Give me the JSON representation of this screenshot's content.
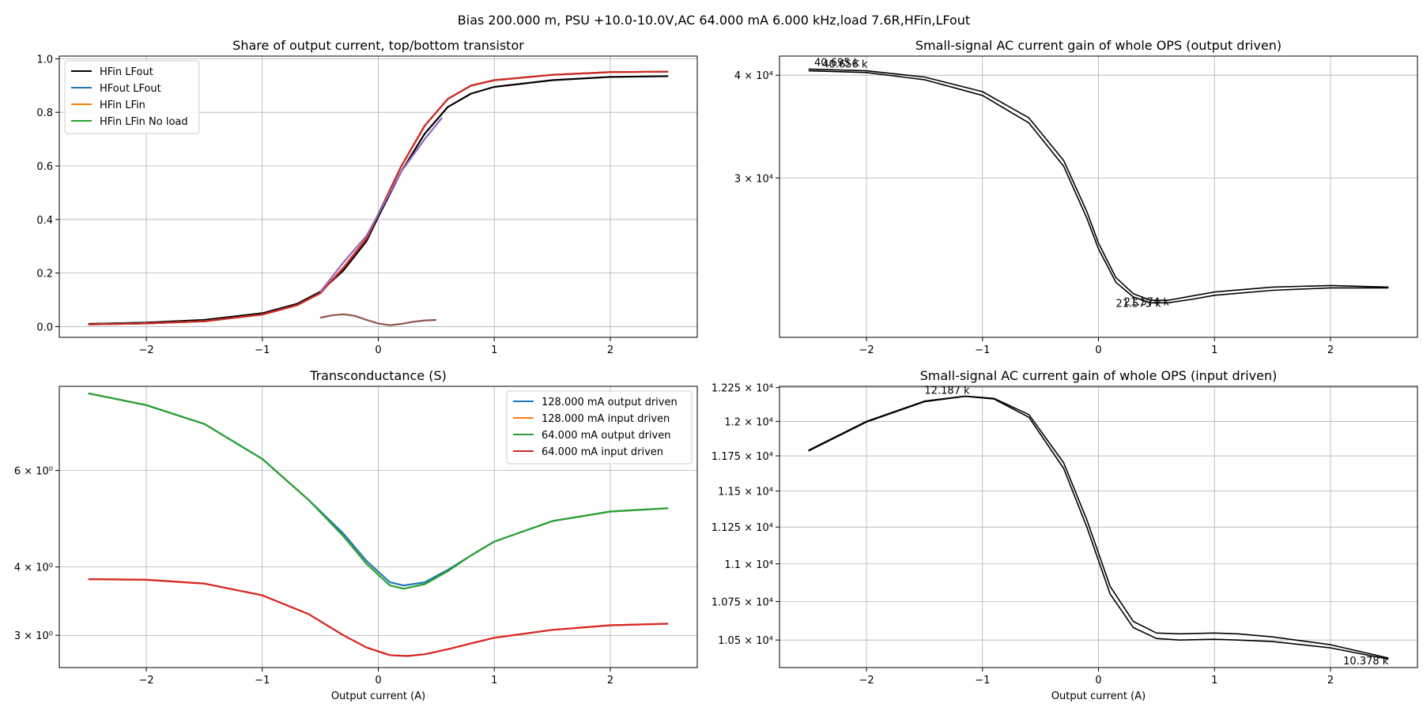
{
  "figure": {
    "suptitle": "Bias 200.000 m, PSU +10.0-10.0V,AC 64.000 mA 6.000 kHz,load 7.6R,HFin,LFout"
  },
  "chart_data": [
    {
      "id": "share",
      "type": "line",
      "title": "Share of output current, top/bottom transistor",
      "xlabel": "",
      "ylabel": "",
      "xlim": [
        -2.75,
        2.75
      ],
      "ylim": [
        -0.04,
        1.01
      ],
      "xticks": [
        -2,
        -1,
        0,
        1,
        2
      ],
      "xtick_labels": [
        "−2",
        "−1",
        "0",
        "1",
        "2"
      ],
      "yticks": [
        0.0,
        0.2,
        0.4,
        0.6,
        0.8,
        1.0
      ],
      "ytick_labels": [
        "0.0",
        "0.2",
        "0.4",
        "0.6",
        "0.8",
        "1.0"
      ],
      "grid": true,
      "legend_position": "top-left",
      "series": [
        {
          "name": "HFin LFout",
          "color": "#000000",
          "x": [
            -2.5,
            -2.0,
            -1.5,
            -1.0,
            -0.7,
            -0.5,
            -0.3,
            -0.1,
            0.0,
            0.2,
            0.4,
            0.6,
            0.8,
            1.0,
            1.5,
            2.0,
            2.5
          ],
          "y": [
            0.01,
            0.015,
            0.025,
            0.05,
            0.085,
            0.13,
            0.21,
            0.32,
            0.41,
            0.58,
            0.72,
            0.82,
            0.87,
            0.895,
            0.92,
            0.932,
            0.935
          ]
        },
        {
          "name": "HFout LFout",
          "color": "#1f77b4",
          "x": [
            -2.5,
            -2.0,
            -1.5,
            -1.0,
            -0.7,
            -0.5,
            -0.3,
            -0.1,
            0.0,
            0.2,
            0.4,
            0.6,
            0.8,
            1.0,
            1.5,
            2.0,
            2.5
          ],
          "y": [
            0.008,
            0.012,
            0.02,
            0.045,
            0.08,
            0.125,
            0.22,
            0.33,
            0.42,
            0.6,
            0.75,
            0.85,
            0.9,
            0.92,
            0.94,
            0.95,
            0.952
          ]
        },
        {
          "name": "HFin LFin",
          "color": "#ff7f0e",
          "x": [
            -2.5,
            -2.0,
            -1.5,
            -1.0,
            -0.7,
            -0.5,
            -0.3,
            -0.1,
            0.0,
            0.2,
            0.4,
            0.6,
            0.8,
            1.0,
            1.5,
            2.0,
            2.5
          ],
          "y": [
            0.008,
            0.012,
            0.02,
            0.045,
            0.08,
            0.125,
            0.22,
            0.33,
            0.42,
            0.6,
            0.75,
            0.85,
            0.9,
            0.92,
            0.94,
            0.95,
            0.952
          ]
        },
        {
          "name": "HFin LFin No load",
          "color": "#2ca02c",
          "x": [
            -2.5,
            -2.0,
            -1.5,
            -1.0,
            -0.7,
            -0.5,
            -0.3,
            -0.1,
            0.0,
            0.2,
            0.4,
            0.6,
            0.8,
            1.0,
            1.5,
            2.0,
            2.5
          ],
          "y": [
            0.008,
            0.012,
            0.02,
            0.045,
            0.08,
            0.125,
            0.22,
            0.33,
            0.42,
            0.6,
            0.75,
            0.85,
            0.9,
            0.92,
            0.94,
            0.95,
            0.952
          ]
        },
        {
          "name": "",
          "color": "#d62728",
          "x": [
            -2.5,
            -2.0,
            -1.5,
            -1.0,
            -0.7,
            -0.5,
            -0.3,
            -0.1,
            0.0,
            0.2,
            0.4,
            0.6,
            0.8,
            1.0,
            1.5,
            2.0,
            2.5
          ],
          "y": [
            0.008,
            0.012,
            0.02,
            0.045,
            0.08,
            0.125,
            0.22,
            0.33,
            0.42,
            0.6,
            0.75,
            0.85,
            0.9,
            0.92,
            0.94,
            0.95,
            0.952
          ]
        },
        {
          "name": "",
          "color": "#9467bd",
          "x": [
            -0.5,
            -0.3,
            -0.1,
            0.0,
            0.2,
            0.4,
            0.55
          ],
          "y": [
            0.13,
            0.24,
            0.34,
            0.42,
            0.58,
            0.7,
            0.78
          ]
        },
        {
          "name": "",
          "color": "#8c564b",
          "x": [
            -0.5,
            -0.4,
            -0.3,
            -0.2,
            -0.1,
            0.0,
            0.1,
            0.2,
            0.3,
            0.4,
            0.5
          ],
          "y": [
            0.033,
            0.042,
            0.046,
            0.04,
            0.025,
            0.012,
            0.005,
            0.01,
            0.018,
            0.023,
            0.025
          ]
        }
      ]
    },
    {
      "id": "gain_out",
      "type": "line",
      "title": "Small-signal AC current gain of whole OPS (output driven)",
      "xlabel": "",
      "ylabel": "",
      "xlim": [
        -2.75,
        2.75
      ],
      "ylim": [
        19200,
        42200
      ],
      "yscale": "log",
      "xticks": [
        -2,
        -1,
        0,
        1,
        2
      ],
      "xtick_labels": [
        "−2",
        "−1",
        "0",
        "1",
        "2"
      ],
      "yticks": [
        30000,
        40000
      ],
      "ytick_labels": [
        "3 × 10⁴",
        "4 × 10⁴"
      ],
      "grid": true,
      "series": [
        {
          "name": "",
          "color": "#000000",
          "x": [
            -2.5,
            -2.0,
            -1.5,
            -1.0,
            -0.6,
            -0.3,
            -0.1,
            0.0,
            0.15,
            0.3,
            0.45,
            0.6,
            0.8,
            1.0,
            1.5,
            2.0,
            2.5
          ],
          "y": [
            40695,
            40500,
            39800,
            38200,
            35500,
            31500,
            27300,
            25000,
            22700,
            21700,
            21300,
            21300,
            21550,
            21800,
            22100,
            22200,
            22100
          ]
        },
        {
          "name": "",
          "color": "#000000",
          "x": [
            -2.5,
            -2.0,
            -1.5,
            -1.0,
            -0.6,
            -0.3,
            -0.1,
            0.0,
            0.15,
            0.3,
            0.45,
            0.6,
            0.8,
            1.0,
            1.5,
            2.0,
            2.5
          ],
          "y": [
            40500,
            40300,
            39500,
            37800,
            35000,
            31000,
            26800,
            24600,
            22400,
            21500,
            21150,
            21150,
            21350,
            21600,
            21900,
            22050,
            22050
          ]
        }
      ],
      "annotations": [
        "40.695 k",
        "40.656 k",
        "21.574 k",
        "21.573 k"
      ]
    },
    {
      "id": "transconductance",
      "type": "line",
      "title": "Transconductance (S)",
      "xlabel": "Output current (A)",
      "ylabel": "",
      "xlim": [
        -2.75,
        2.75
      ],
      "ylim": [
        2.62,
        8.55
      ],
      "yscale": "log",
      "xticks": [
        -2,
        -1,
        0,
        1,
        2
      ],
      "xtick_labels": [
        "−2",
        "−1",
        "0",
        "1",
        "2"
      ],
      "yticks": [
        3,
        4,
        6
      ],
      "ytick_labels": [
        "3 × 10⁰",
        "4 × 10⁰",
        "6 × 10⁰"
      ],
      "grid": true,
      "legend_position": "top-right",
      "series": [
        {
          "name": "128.000 mA output driven",
          "color": "#1f77b4",
          "x": [
            -2.5,
            -2.0,
            -1.5,
            -1.0,
            -0.6,
            -0.3,
            -0.1,
            0.1,
            0.22,
            0.4,
            0.6,
            0.8,
            1.0,
            1.5,
            2.0,
            2.5
          ],
          "y": [
            8.3,
            7.9,
            7.3,
            6.3,
            5.3,
            4.6,
            4.1,
            3.75,
            3.7,
            3.75,
            3.95,
            4.2,
            4.45,
            4.85,
            5.05,
            5.12
          ]
        },
        {
          "name": "128.000 mA input driven",
          "color": "#ff7f0e",
          "x": [
            -2.5,
            -2.0,
            -1.5,
            -1.0,
            -0.6,
            -0.3,
            -0.1,
            0.1,
            0.25,
            0.4,
            0.6,
            0.8,
            1.0,
            1.5,
            2.0,
            2.5
          ],
          "y": [
            3.8,
            3.79,
            3.73,
            3.55,
            3.28,
            3.0,
            2.85,
            2.76,
            2.75,
            2.77,
            2.83,
            2.9,
            2.97,
            3.07,
            3.13,
            3.15
          ]
        },
        {
          "name": "64.000 mA output driven",
          "color": "#2ca02c",
          "x": [
            -2.5,
            -2.0,
            -1.5,
            -1.0,
            -0.6,
            -0.3,
            -0.1,
            0.1,
            0.22,
            0.4,
            0.6,
            0.8,
            1.0,
            1.5,
            2.0,
            2.5
          ],
          "y": [
            8.3,
            7.9,
            7.3,
            6.3,
            5.3,
            4.55,
            4.05,
            3.7,
            3.65,
            3.72,
            3.93,
            4.2,
            4.45,
            4.85,
            5.05,
            5.12
          ]
        },
        {
          "name": "64.000 mA input driven",
          "color": "#d62728",
          "x": [
            -2.5,
            -2.0,
            -1.5,
            -1.0,
            -0.6,
            -0.3,
            -0.1,
            0.1,
            0.25,
            0.4,
            0.6,
            0.8,
            1.0,
            1.5,
            2.0,
            2.5
          ],
          "y": [
            3.8,
            3.79,
            3.73,
            3.55,
            3.28,
            3.0,
            2.85,
            2.76,
            2.75,
            2.77,
            2.83,
            2.9,
            2.97,
            3.07,
            3.13,
            3.15
          ]
        }
      ]
    },
    {
      "id": "gain_in",
      "type": "line",
      "title": "Small-signal AC current gain of whole OPS (input driven)",
      "xlabel": "Output current (A)",
      "ylabel": "",
      "xlim": [
        -2.75,
        2.75
      ],
      "ylim": [
        10325,
        12260
      ],
      "yscale": "log",
      "xticks": [
        -2,
        -1,
        0,
        1,
        2
      ],
      "xtick_labels": [
        "−2",
        "−1",
        "0",
        "1",
        "2"
      ],
      "yticks": [
        10500,
        10750,
        11000,
        11250,
        11500,
        11750,
        12000,
        12250
      ],
      "ytick_labels": [
        "1.05 × 10⁴",
        "1.075 × 10⁴",
        "1.1 × 10⁴",
        "1.125 × 10⁴",
        "1.15 × 10⁴",
        "1.175 × 10⁴",
        "1.2 × 10⁴",
        "1.225 × 10⁴"
      ],
      "grid": true,
      "series": [
        {
          "name": "",
          "color": "#000000",
          "x": [
            -2.5,
            -2.0,
            -1.5,
            -1.15,
            -0.9,
            -0.6,
            -0.3,
            -0.1,
            0.1,
            0.3,
            0.5,
            0.7,
            1.0,
            1.2,
            1.5,
            2.0,
            2.5
          ],
          "y": [
            11790,
            12000,
            12150,
            12187,
            12170,
            12050,
            11700,
            11300,
            10850,
            10620,
            10545,
            10540,
            10545,
            10540,
            10520,
            10470,
            10385
          ]
        },
        {
          "name": "",
          "color": "#000000",
          "x": [
            -2.5,
            -2.0,
            -1.5,
            -1.15,
            -0.9,
            -0.6,
            -0.3,
            -0.1,
            0.1,
            0.3,
            0.5,
            0.7,
            1.0,
            1.2,
            1.5,
            2.0,
            2.5
          ],
          "y": [
            11785,
            11995,
            12145,
            12185,
            12165,
            12030,
            11660,
            11250,
            10800,
            10580,
            10510,
            10500,
            10505,
            10500,
            10490,
            10450,
            10378
          ]
        }
      ],
      "annotations": [
        "12.187 k",
        "10.378 k"
      ]
    }
  ]
}
